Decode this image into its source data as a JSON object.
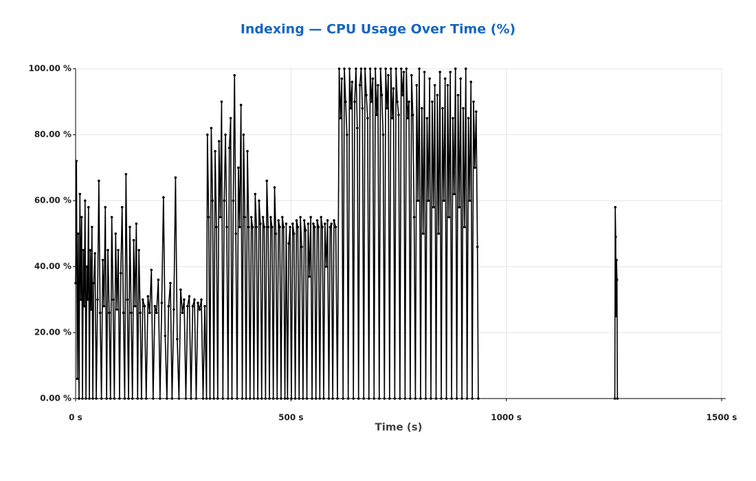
{
  "chart_data": {
    "type": "line",
    "title": "Indexing — CPU Usage Over Time (%)",
    "x_label": "Time (s)",
    "xlim": [
      0,
      1500
    ],
    "xticks": [
      {
        "value": 0,
        "label": "0 s"
      },
      {
        "value": 500,
        "label": "500 s"
      },
      {
        "value": 1000,
        "label": "1000 s"
      },
      {
        "value": 1500,
        "label": "1500 s"
      }
    ],
    "ylim": [
      0,
      100
    ],
    "yticks": [
      {
        "value": 0,
        "label": "0.00 %"
      },
      {
        "value": 20,
        "label": "20.00 %"
      },
      {
        "value": 40,
        "label": "40.00 %"
      },
      {
        "value": 60,
        "label": "60.00 %"
      },
      {
        "value": 80,
        "label": "80.00 %"
      },
      {
        "value": 100,
        "label": "100.00 %"
      }
    ],
    "grid": true,
    "series": [
      {
        "name": "CPU Usage",
        "color": "#000000",
        "x": [
          0,
          2,
          4,
          6,
          8,
          10,
          12,
          14,
          16,
          18,
          20,
          22,
          24,
          26,
          28,
          30,
          32,
          34,
          36,
          38,
          40,
          42,
          45,
          48,
          51,
          54,
          57,
          60,
          63,
          66,
          69,
          72,
          75,
          78,
          81,
          84,
          87,
          90,
          93,
          96,
          99,
          102,
          105,
          108,
          111,
          114,
          117,
          120,
          123,
          126,
          129,
          132,
          135,
          138,
          141,
          144,
          147,
          150,
          153,
          156,
          160,
          164,
          168,
          172,
          176,
          180,
          184,
          188,
          192,
          196,
          200,
          204,
          208,
          212,
          216,
          220,
          224,
          228,
          232,
          236,
          240,
          244,
          248,
          252,
          256,
          260,
          264,
          268,
          272,
          276,
          280,
          284,
          288,
          292,
          296,
          300,
          304,
          306,
          309,
          312,
          315,
          318,
          321,
          324,
          327,
          330,
          333,
          336,
          339,
          342,
          345,
          348,
          351,
          354,
          357,
          360,
          363,
          366,
          369,
          372,
          375,
          378,
          381,
          384,
          387,
          390,
          393,
          396,
          399,
          402,
          405,
          408,
          411,
          414,
          417,
          420,
          423,
          426,
          429,
          432,
          435,
          438,
          441,
          444,
          447,
          450,
          453,
          456,
          459,
          462,
          465,
          468,
          471,
          474,
          477,
          480,
          483,
          486,
          489,
          492,
          495,
          498,
          501,
          504,
          507,
          510,
          513,
          516,
          519,
          522,
          525,
          528,
          531,
          534,
          537,
          540,
          543,
          546,
          549,
          552,
          555,
          558,
          561,
          564,
          567,
          570,
          573,
          576,
          579,
          582,
          585,
          588,
          591,
          594,
          597,
          600,
          604,
          608,
          612,
          615,
          618,
          621,
          624,
          627,
          630,
          633,
          636,
          639,
          642,
          645,
          648,
          651,
          654,
          657,
          660,
          663,
          666,
          669,
          672,
          675,
          678,
          681,
          684,
          687,
          690,
          693,
          696,
          699,
          702,
          705,
          708,
          711,
          714,
          717,
          720,
          723,
          726,
          729,
          732,
          735,
          738,
          741,
          744,
          747,
          750,
          753,
          756,
          759,
          762,
          765,
          768,
          771,
          774,
          777,
          780,
          783,
          786,
          789,
          792,
          795,
          798,
          801,
          804,
          807,
          810,
          813,
          816,
          819,
          822,
          825,
          828,
          831,
          834,
          837,
          840,
          843,
          846,
          849,
          852,
          855,
          858,
          861,
          864,
          867,
          870,
          873,
          876,
          879,
          882,
          885,
          888,
          891,
          894,
          897,
          900,
          903,
          906,
          909,
          912,
          915,
          918,
          921,
          924,
          927,
          930,
          933,
          935,
          1100,
          1252,
          1253,
          1254,
          1255,
          1256,
          1257,
          1258
        ],
        "values": [
          35,
          72,
          6,
          50,
          0,
          62,
          30,
          55,
          0,
          45,
          28,
          60,
          0,
          40,
          30,
          58,
          0,
          45,
          27,
          52,
          0,
          35,
          44,
          0,
          30,
          66,
          26,
          0,
          42,
          28,
          58,
          0,
          45,
          26,
          0,
          55,
          30,
          0,
          50,
          27,
          45,
          0,
          38,
          58,
          26,
          0,
          68,
          30,
          0,
          52,
          26,
          0,
          48,
          28,
          53,
          0,
          45,
          26,
          0,
          30,
          28,
          0,
          31,
          26,
          39,
          0,
          28,
          26,
          36,
          0,
          29,
          61,
          19,
          0,
          28,
          35,
          0,
          27,
          67,
          18,
          0,
          33,
          26,
          30,
          0,
          28,
          31,
          0,
          28,
          30,
          0,
          29,
          27,
          30,
          0,
          28,
          0,
          80,
          55,
          0,
          82,
          60,
          0,
          75,
          52,
          0,
          78,
          55,
          90,
          0,
          60,
          80,
          52,
          0,
          76,
          85,
          0,
          60,
          98,
          50,
          0,
          70,
          52,
          89,
          0,
          80,
          55,
          0,
          75,
          52,
          0,
          55,
          52,
          0,
          62,
          52,
          0,
          60,
          53,
          0,
          55,
          52,
          0,
          66,
          52,
          0,
          55,
          52,
          0,
          64,
          50,
          0,
          54,
          52,
          0,
          55,
          52,
          0,
          53,
          0,
          47,
          52,
          0,
          53,
          50,
          0,
          54,
          52,
          0,
          55,
          46,
          0,
          54,
          51,
          0,
          53,
          37,
          55,
          0,
          53,
          52,
          0,
          54,
          52,
          0,
          55,
          52,
          0,
          53,
          40,
          54,
          0,
          52,
          53,
          0,
          54,
          52,
          0,
          100,
          85,
          97,
          0,
          100,
          90,
          80,
          0,
          100,
          88,
          96,
          0,
          90,
          100,
          82,
          0,
          95,
          100,
          88,
          0,
          100,
          92,
          85,
          0,
          100,
          90,
          97,
          0,
          100,
          86,
          95,
          0,
          100,
          92,
          80,
          0,
          100,
          88,
          98,
          0,
          100,
          85,
          94,
          0,
          100,
          90,
          86,
          0,
          100,
          92,
          99,
          0,
          100,
          85,
          90,
          0,
          98,
          86,
          55,
          0,
          95,
          60,
          100,
          0,
          88,
          50,
          99,
          0,
          85,
          60,
          97,
          0,
          90,
          58,
          95,
          0,
          92,
          50,
          99,
          0,
          88,
          60,
          97,
          0,
          95,
          55,
          99,
          0,
          85,
          62,
          100,
          0,
          92,
          58,
          97,
          0,
          88,
          52,
          100,
          0,
          85,
          60,
          96,
          0,
          90,
          70,
          87,
          46,
          0,
          null,
          0,
          58,
          49,
          25,
          42,
          36,
          0
        ]
      }
    ]
  }
}
